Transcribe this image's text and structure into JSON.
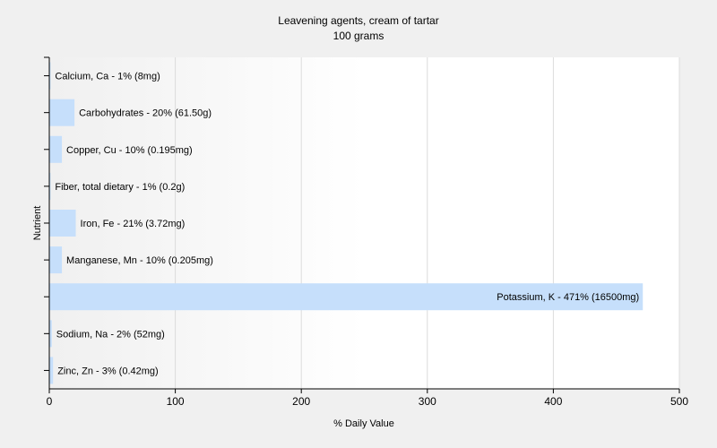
{
  "chart_data": {
    "type": "bar",
    "orientation": "horizontal",
    "title": "Leavening agents, cream of tartar",
    "subtitle": "100 grams",
    "xlabel": "% Daily Value",
    "ylabel": "Nutrient",
    "xlim": [
      0,
      500
    ],
    "xticks": [
      "0",
      "100",
      "200",
      "300",
      "400",
      "500"
    ],
    "grid": true,
    "bar_color": "#c6dffb",
    "categories": [
      "Calcium, Ca",
      "Carbohydrates",
      "Copper, Cu",
      "Fiber, total dietary",
      "Iron, Fe",
      "Manganese, Mn",
      "Potassium, K",
      "Sodium, Na",
      "Zinc, Zn"
    ],
    "values": [
      1,
      20,
      10,
      1,
      21,
      10,
      471,
      2,
      3
    ],
    "data_labels": [
      "Calcium, Ca - 1% (8mg)",
      "Carbohydrates - 20% (61.50g)",
      "Copper, Cu - 10% (0.195mg)",
      "Fiber, total dietary - 1% (0.2g)",
      "Iron, Fe - 21% (3.72mg)",
      "Manganese, Mn - 10% (0.205mg)",
      "Potassium, K - 471% (16500mg)",
      "Sodium, Na - 2% (52mg)",
      "Zinc, Zn - 3% (0.42mg)"
    ]
  }
}
